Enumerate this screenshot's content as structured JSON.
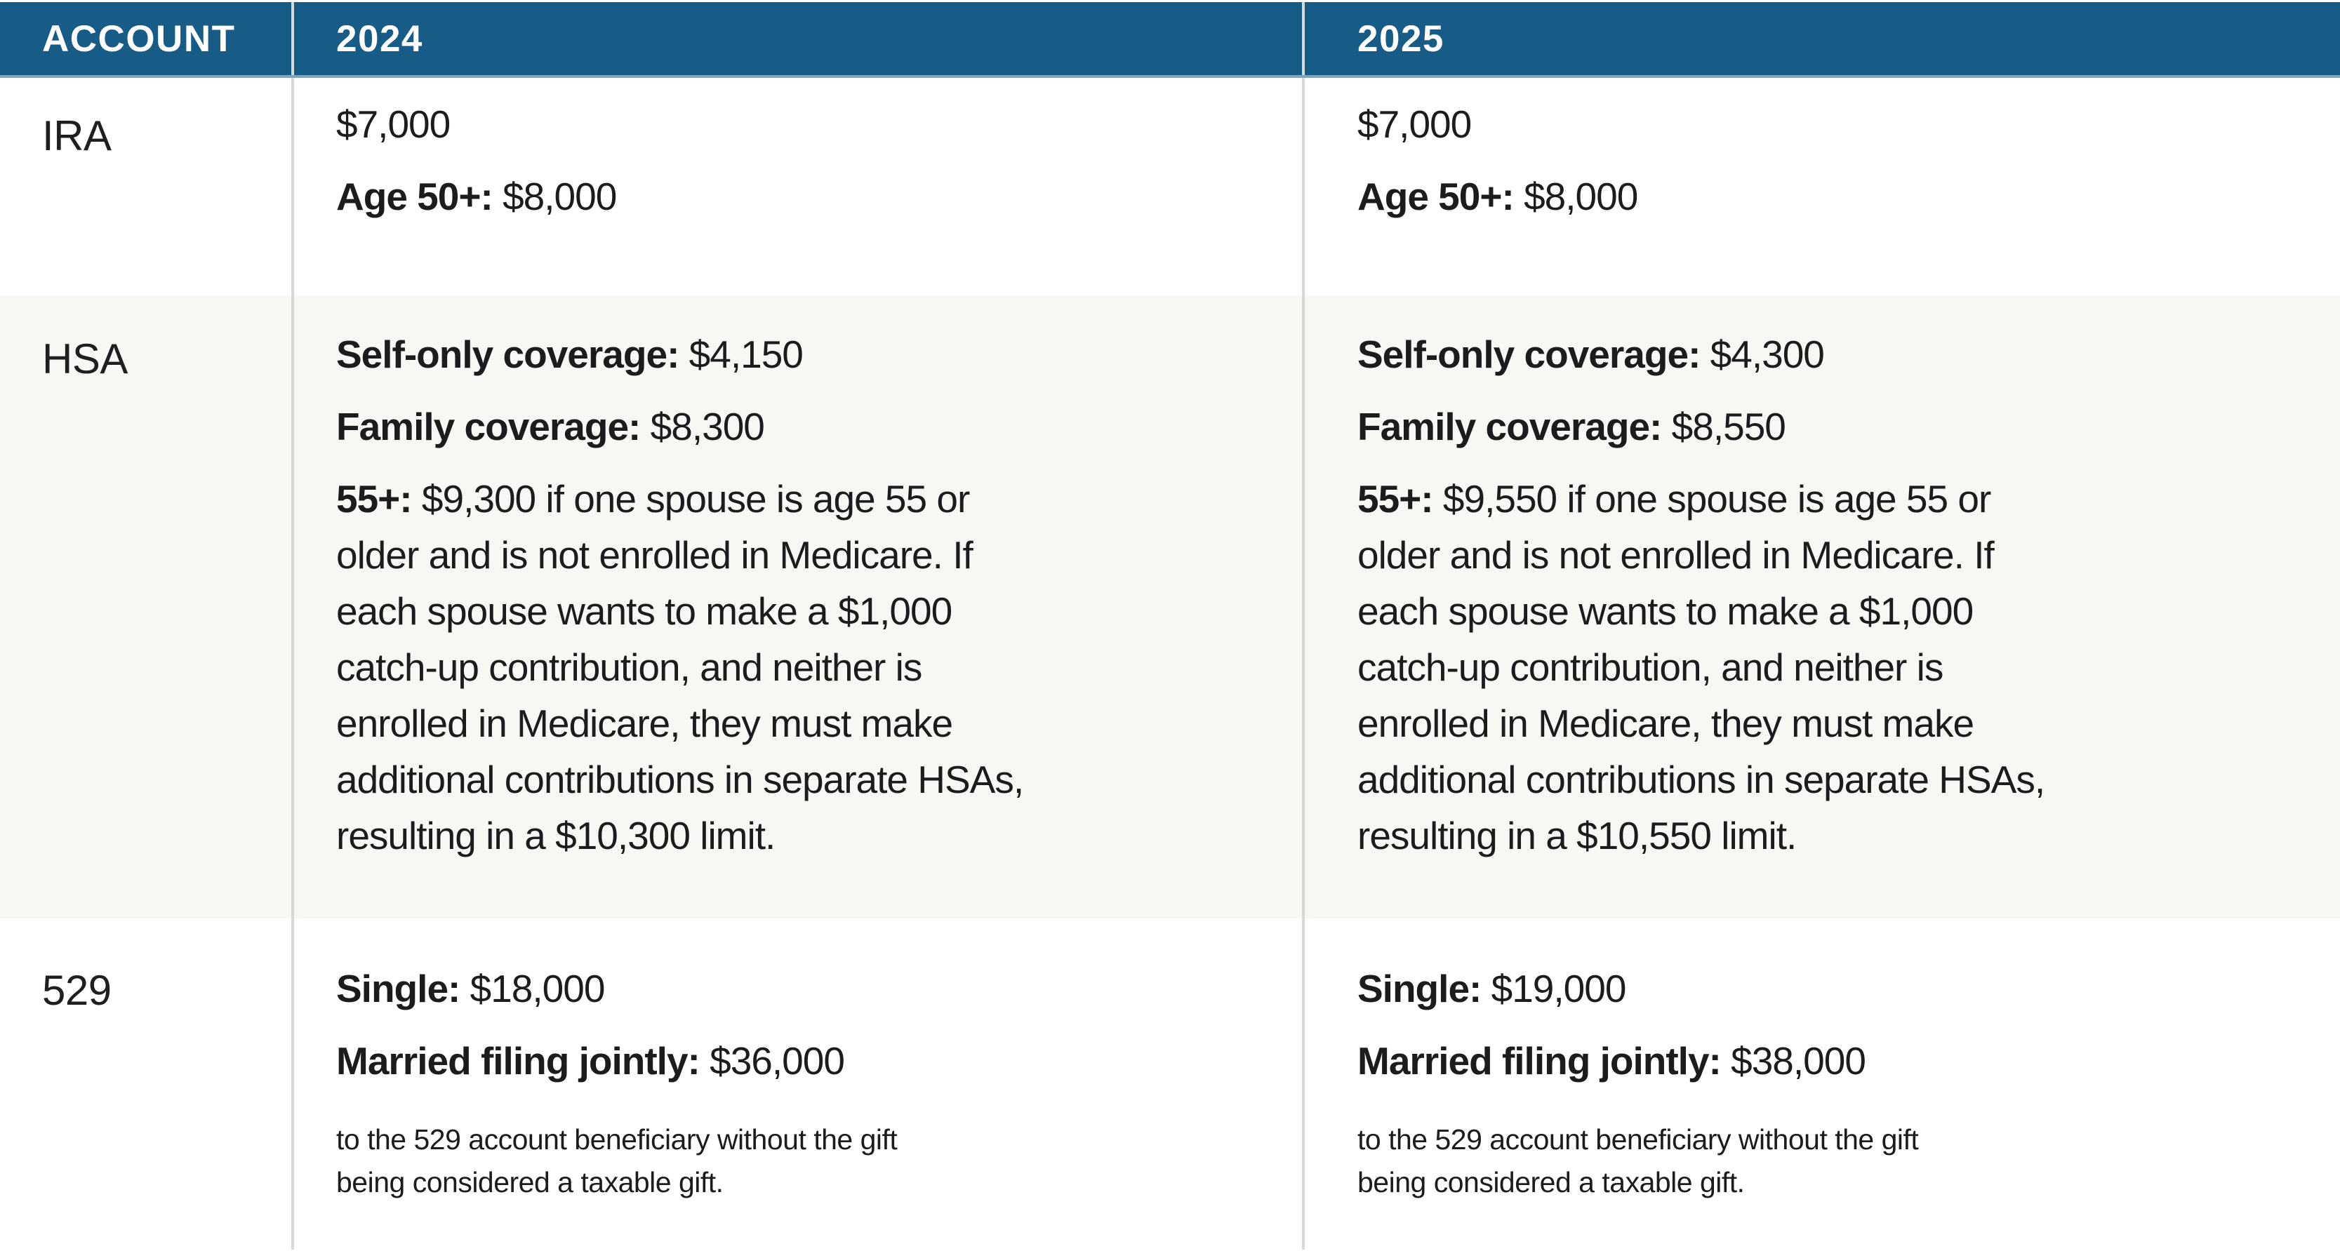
{
  "colors": {
    "header_bg": "#175b87",
    "header_text": "#ffffff",
    "header_underline": "#84a5ba",
    "alt_row_bg": "#f9f7f4",
    "column_divider": "#d8d8d8",
    "body_text": "#1c1c1c"
  },
  "header": {
    "account": "ACCOUNT",
    "y2024": "2024",
    "y2025": "2025"
  },
  "ira": {
    "label": "IRA",
    "y2024": {
      "limit": "$7,000",
      "age50_label": "Age 50+:",
      "age50_value": "$8,000"
    },
    "y2025": {
      "limit": "$7,000",
      "age50_label": "Age 50+:",
      "age50_value": "$8,000"
    }
  },
  "hsa": {
    "label": "HSA",
    "y2024": {
      "self_label": "Self-only coverage:",
      "self_value": "$4,150",
      "family_label": "Family coverage:",
      "family_value": "$8,300",
      "catchup_label": "55+:",
      "catchup_text": "$9,300 if one spouse is age 55 or\nolder and is not enrolled in Medicare. If\neach spouse wants to make a $1,000\ncatch-up contribution, and neither is\nenrolled in Medicare, they must make\nadditional contributions in separate HSAs,\nresulting in a $10,300 limit."
    },
    "y2025": {
      "self_label": "Self-only coverage:",
      "self_value": "$4,300",
      "family_label": "Family coverage:",
      "family_value": "$8,550",
      "catchup_label": "55+:",
      "catchup_text": "$9,550 if one spouse is age 55 or\nolder and is not enrolled in Medicare. If\neach spouse wants to make a $1,000\ncatch-up contribution, and neither is\nenrolled in Medicare, they must make\nadditional contributions in separate HSAs,\nresulting in a $10,550 limit."
    }
  },
  "f529": {
    "label": "529",
    "y2024": {
      "single_label": "Single:",
      "single_value": "$18,000",
      "married_label": "Married filing jointly:",
      "married_value": "$36,000",
      "note": "to the 529 account beneficiary without the gift\nbeing considered a taxable gift."
    },
    "y2025": {
      "single_label": "Single:",
      "single_value": "$19,000",
      "married_label": "Married filing jointly:",
      "married_value": "$38,000",
      "note": "to the 529 account beneficiary without the gift\nbeing considered a taxable gift."
    }
  }
}
